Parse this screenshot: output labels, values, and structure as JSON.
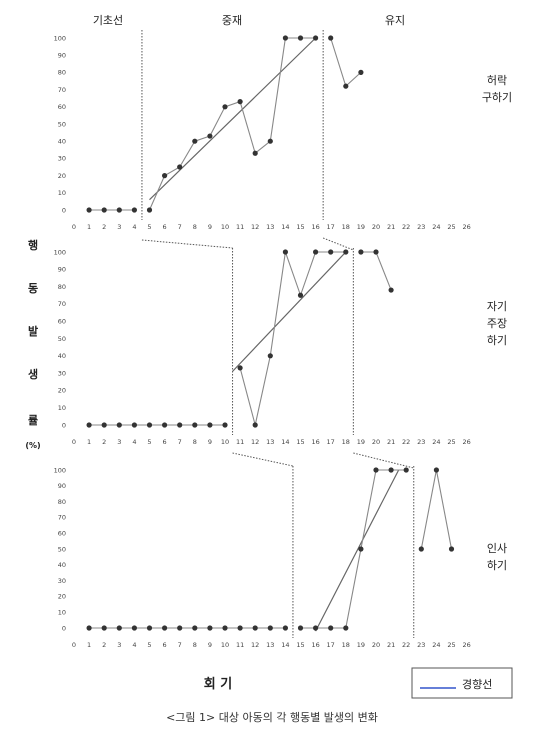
{
  "phases": [
    "기초선",
    "중재",
    "유지"
  ],
  "ylabel": [
    "행",
    "동",
    "발",
    "생",
    "률",
    "(%)"
  ],
  "xlabel": "회  기",
  "legend": {
    "label": "경향선",
    "color": "#3355cc"
  },
  "caption": "<그림 1>  대상 아동의 각 행동별 발생의 변화",
  "colors": {
    "marker": "#333333",
    "line": "#888888",
    "trend": "#666666",
    "divider": "#555555"
  },
  "chart_data": [
    {
      "type": "line",
      "title": "허락 구하기",
      "title_lines": [
        "허락",
        "구하기"
      ],
      "x_ticks": [
        0,
        1,
        2,
        3,
        4,
        5,
        6,
        7,
        8,
        9,
        10,
        11,
        12,
        13,
        14,
        15,
        16,
        17,
        18,
        19,
        20,
        21,
        22,
        23,
        24,
        25,
        26
      ],
      "y_ticks": [
        0,
        10,
        20,
        30,
        40,
        50,
        60,
        70,
        80,
        90,
        100
      ],
      "xlim": [
        0,
        26
      ],
      "ylim": [
        0,
        100
      ],
      "phase_change_after": [
        4,
        16
      ],
      "segments": [
        [
          [
            1,
            0
          ],
          [
            2,
            0
          ],
          [
            3,
            0
          ],
          [
            4,
            0
          ]
        ],
        [
          [
            5,
            0
          ],
          [
            6,
            20
          ],
          [
            7,
            25
          ],
          [
            8,
            40
          ],
          [
            9,
            43
          ],
          [
            10,
            60
          ],
          [
            11,
            63
          ],
          [
            12,
            33
          ],
          [
            13,
            40
          ],
          [
            14,
            100
          ],
          [
            15,
            100
          ],
          [
            16,
            100
          ]
        ],
        [
          [
            17,
            100
          ],
          [
            18,
            72
          ],
          [
            19,
            80
          ]
        ]
      ],
      "trend": [
        [
          5,
          6
        ],
        [
          16,
          100
        ]
      ]
    },
    {
      "type": "line",
      "title": "자기 주장 하기",
      "title_lines": [
        "자기",
        "주장",
        "하기"
      ],
      "x_ticks": [
        0,
        1,
        2,
        3,
        4,
        5,
        6,
        7,
        8,
        9,
        10,
        11,
        12,
        13,
        14,
        15,
        16,
        17,
        18,
        19,
        20,
        21,
        22,
        23,
        24,
        25,
        26
      ],
      "y_ticks": [
        0,
        10,
        20,
        30,
        40,
        50,
        60,
        70,
        80,
        90,
        100
      ],
      "xlim": [
        0,
        26
      ],
      "ylim": [
        0,
        100
      ],
      "phase_change_after": [
        10,
        18
      ],
      "segments": [
        [
          [
            1,
            0
          ],
          [
            2,
            0
          ],
          [
            3,
            0
          ],
          [
            4,
            0
          ],
          [
            5,
            0
          ],
          [
            6,
            0
          ],
          [
            7,
            0
          ],
          [
            8,
            0
          ],
          [
            9,
            0
          ],
          [
            10,
            0
          ]
        ],
        [
          [
            11,
            33
          ],
          [
            12,
            0
          ],
          [
            13,
            40
          ],
          [
            14,
            100
          ],
          [
            15,
            75
          ],
          [
            16,
            100
          ],
          [
            17,
            100
          ],
          [
            18,
            100
          ]
        ],
        [
          [
            19,
            100
          ],
          [
            20,
            100
          ],
          [
            21,
            78
          ]
        ]
      ],
      "trend": [
        [
          10.5,
          31
        ],
        [
          18,
          100
        ]
      ]
    },
    {
      "type": "line",
      "title": "인사 하기",
      "title_lines": [
        "인사",
        "하기"
      ],
      "x_ticks": [
        0,
        1,
        2,
        3,
        4,
        5,
        6,
        7,
        8,
        9,
        10,
        11,
        12,
        13,
        14,
        15,
        16,
        17,
        18,
        19,
        20,
        21,
        22,
        23,
        24,
        25,
        26
      ],
      "y_ticks": [
        0,
        10,
        20,
        30,
        40,
        50,
        60,
        70,
        80,
        90,
        100
      ],
      "xlim": [
        0,
        26
      ],
      "ylim": [
        0,
        100
      ],
      "phase_change_after": [
        14,
        22
      ],
      "segments": [
        [
          [
            1,
            0
          ],
          [
            2,
            0
          ],
          [
            3,
            0
          ],
          [
            4,
            0
          ],
          [
            5,
            0
          ],
          [
            6,
            0
          ],
          [
            7,
            0
          ],
          [
            8,
            0
          ],
          [
            9,
            0
          ],
          [
            10,
            0
          ],
          [
            11,
            0
          ],
          [
            12,
            0
          ],
          [
            13,
            0
          ],
          [
            14,
            0
          ]
        ],
        [
          [
            15,
            0
          ],
          [
            16,
            0
          ],
          [
            17,
            0
          ],
          [
            18,
            0
          ],
          [
            19,
            50
          ],
          [
            20,
            100
          ],
          [
            21,
            100
          ],
          [
            22,
            100
          ]
        ],
        [
          [
            23,
            50
          ],
          [
            24,
            100
          ],
          [
            25,
            50
          ]
        ]
      ],
      "trend": [
        [
          16,
          -2
        ],
        [
          21.5,
          100
        ]
      ]
    }
  ]
}
